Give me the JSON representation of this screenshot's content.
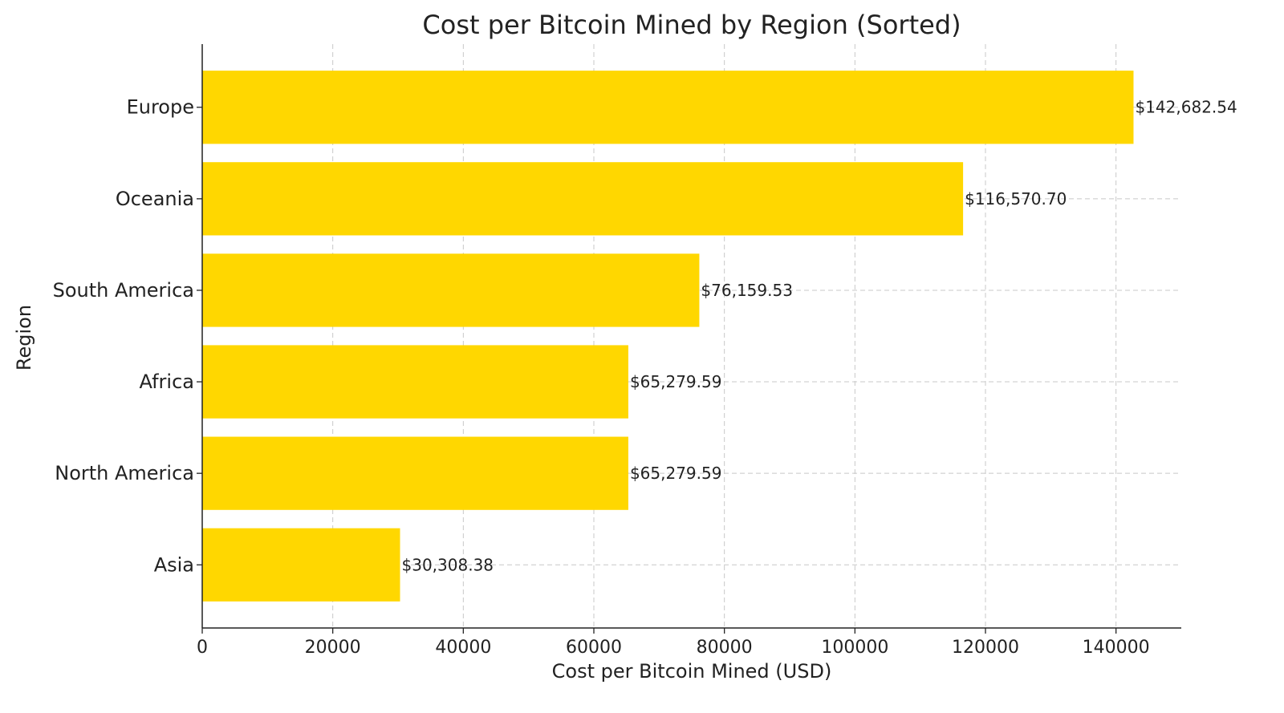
{
  "chart_data": {
    "type": "bar",
    "orientation": "horizontal",
    "title": "Cost per Bitcoin Mined by Region (Sorted)",
    "xlabel": "Cost per Bitcoin Mined (USD)",
    "ylabel": "Region",
    "categories": [
      "Europe",
      "Oceania",
      "South America",
      "Africa",
      "North America",
      "Asia"
    ],
    "values": [
      142682.54,
      116570.7,
      76159.53,
      65279.59,
      65279.59,
      30308.38
    ],
    "data_labels": [
      "$142,682.54",
      "$116,570.70",
      "$76,159.53",
      "$65,279.59",
      "$65,279.59",
      "$30,308.38"
    ],
    "xlim": [
      0,
      150000
    ],
    "xticks": [
      0,
      20000,
      40000,
      60000,
      80000,
      100000,
      120000,
      140000
    ],
    "xtick_labels": [
      "0",
      "20000",
      "40000",
      "60000",
      "80000",
      "100000",
      "120000",
      "140000"
    ],
    "grid": true,
    "bar_color": "#FFD700",
    "grid_color": "#c8c8c8",
    "axis_color": "#222222"
  }
}
